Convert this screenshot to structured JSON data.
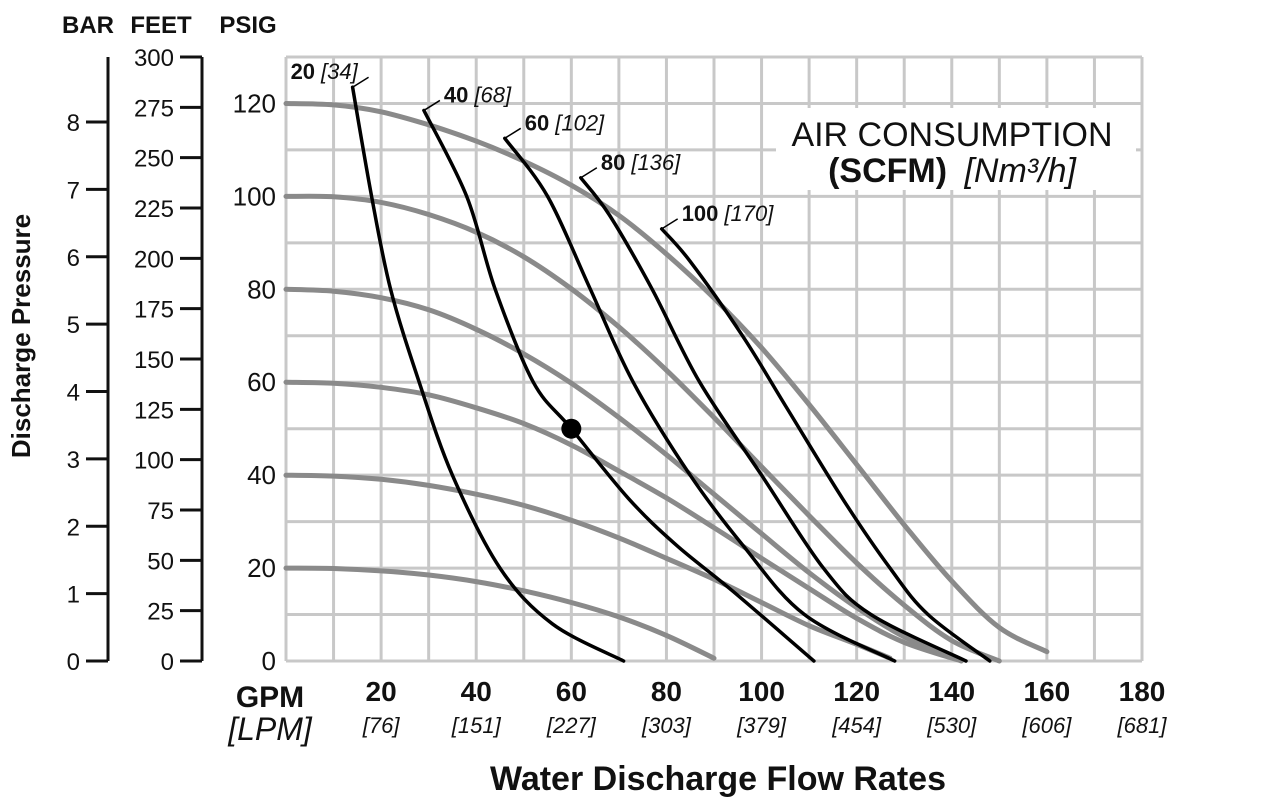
{
  "chart_data": {
    "type": "line",
    "title": "",
    "legend_box": {
      "line1": "AIR CONSUMPTION",
      "line2_bold": "(SCFM)",
      "line2_italic": "[Nm³/h]"
    },
    "xlabel": "Water Discharge Flow Rates",
    "x_unit_primary": "GPM",
    "x_unit_secondary": "[LPM]",
    "xlim": [
      0,
      180
    ],
    "x_ticks": [
      {
        "v": 20,
        "label": "20",
        "sub": "[76]"
      },
      {
        "v": 40,
        "label": "40",
        "sub": "[151]"
      },
      {
        "v": 60,
        "label": "60",
        "sub": "[227]"
      },
      {
        "v": 80,
        "label": "80",
        "sub": "[303]"
      },
      {
        "v": 100,
        "label": "100",
        "sub": "[379]"
      },
      {
        "v": 120,
        "label": "120",
        "sub": "[454]"
      },
      {
        "v": 140,
        "label": "140",
        "sub": "[530]"
      },
      {
        "v": 160,
        "label": "160",
        "sub": "[606]"
      },
      {
        "v": 180,
        "label": "180",
        "sub": "[681]"
      }
    ],
    "ylabel": "Discharge Pressure",
    "ylim": [
      0,
      130
    ],
    "y_axes": [
      {
        "name": "BAR",
        "ticks": [
          {
            "v": 0,
            "label": "0"
          },
          {
            "v": 14.5,
            "label": "1"
          },
          {
            "v": 29,
            "label": "2"
          },
          {
            "v": 43.5,
            "label": "3"
          },
          {
            "v": 58,
            "label": "4"
          },
          {
            "v": 72.5,
            "label": "5"
          },
          {
            "v": 87,
            "label": "6"
          },
          {
            "v": 101.5,
            "label": "7"
          },
          {
            "v": 116,
            "label": "8"
          }
        ]
      },
      {
        "name": "FEET",
        "ticks": [
          {
            "v": 0,
            "label": "0"
          },
          {
            "v": 10.83,
            "label": "25"
          },
          {
            "v": 21.67,
            "label": "50"
          },
          {
            "v": 32.5,
            "label": "75"
          },
          {
            "v": 43.33,
            "label": "100"
          },
          {
            "v": 54.17,
            "label": "125"
          },
          {
            "v": 65,
            "label": "150"
          },
          {
            "v": 75.83,
            "label": "175"
          },
          {
            "v": 86.67,
            "label": "200"
          },
          {
            "v": 97.5,
            "label": "225"
          },
          {
            "v": 108.33,
            "label": "250"
          },
          {
            "v": 119.17,
            "label": "275"
          },
          {
            "v": 130,
            "label": "300"
          }
        ]
      },
      {
        "name": "PSIG",
        "ticks": [
          {
            "v": 0,
            "label": "0"
          },
          {
            "v": 20,
            "label": "20"
          },
          {
            "v": 40,
            "label": "40"
          },
          {
            "v": 60,
            "label": "60"
          },
          {
            "v": 80,
            "label": "80"
          },
          {
            "v": 100,
            "label": "100"
          },
          {
            "v": 120,
            "label": "120"
          }
        ]
      }
    ],
    "grid": true,
    "pressure_series": [
      {
        "points": [
          [
            0,
            120
          ],
          [
            10,
            119.7
          ],
          [
            20,
            118.2
          ],
          [
            30,
            115.4
          ],
          [
            40,
            111.9
          ],
          [
            50,
            107.6
          ],
          [
            60,
            102.4
          ],
          [
            70,
            95.9
          ],
          [
            80,
            87.6
          ],
          [
            90,
            78.1
          ],
          [
            100,
            67.4
          ],
          [
            110,
            55.2
          ],
          [
            120,
            42.3
          ],
          [
            130,
            29.3
          ],
          [
            140,
            17.2
          ],
          [
            150,
            7.2
          ],
          [
            160,
            2
          ]
        ]
      },
      {
        "points": [
          [
            0,
            100
          ],
          [
            10,
            99.9
          ],
          [
            20,
            98.7
          ],
          [
            30,
            96.1
          ],
          [
            40,
            92.3
          ],
          [
            50,
            87
          ],
          [
            60,
            80.1
          ],
          [
            70,
            71.9
          ],
          [
            80,
            62.6
          ],
          [
            90,
            52.4
          ],
          [
            100,
            41.8
          ],
          [
            110,
            31.3
          ],
          [
            120,
            21.1
          ],
          [
            130,
            12
          ],
          [
            140,
            4.4
          ],
          [
            150,
            0
          ]
        ]
      },
      {
        "points": [
          [
            0,
            80
          ],
          [
            10,
            79.6
          ],
          [
            20,
            78.2
          ],
          [
            30,
            75.6
          ],
          [
            40,
            71.4
          ],
          [
            50,
            66.1
          ],
          [
            60,
            59.8
          ],
          [
            70,
            52.4
          ],
          [
            80,
            44.4
          ],
          [
            90,
            35.9
          ],
          [
            100,
            27.4
          ],
          [
            110,
            19
          ],
          [
            120,
            11.5
          ],
          [
            130,
            5.2
          ],
          [
            140,
            1
          ]
        ]
      },
      {
        "points": [
          [
            0,
            60
          ],
          [
            10,
            59.8
          ],
          [
            20,
            58.9
          ],
          [
            30,
            57.3
          ],
          [
            40,
            54.5
          ],
          [
            50,
            51.1
          ],
          [
            60,
            46.5
          ],
          [
            70,
            40.9
          ],
          [
            80,
            35.1
          ],
          [
            90,
            28.7
          ],
          [
            100,
            22.1
          ],
          [
            110,
            15.6
          ],
          [
            120,
            9.2
          ],
          [
            130,
            4
          ],
          [
            142,
            0
          ]
        ]
      },
      {
        "points": [
          [
            0,
            40
          ],
          [
            10,
            39.8
          ],
          [
            20,
            39.1
          ],
          [
            30,
            37.8
          ],
          [
            40,
            35.9
          ],
          [
            50,
            33.5
          ],
          [
            60,
            30.3
          ],
          [
            70,
            26.5
          ],
          [
            80,
            22.1
          ],
          [
            90,
            17.6
          ],
          [
            100,
            12.6
          ],
          [
            110,
            7.6
          ],
          [
            120,
            3.6
          ],
          [
            127,
            0.6
          ]
        ]
      },
      {
        "points": [
          [
            0,
            20
          ],
          [
            10,
            19.9
          ],
          [
            20,
            19.4
          ],
          [
            30,
            18.5
          ],
          [
            40,
            17.1
          ],
          [
            50,
            15.1
          ],
          [
            60,
            12.6
          ],
          [
            70,
            9.5
          ],
          [
            80,
            5.5
          ],
          [
            90,
            0.6
          ]
        ]
      }
    ],
    "air_series": [
      {
        "label": "20",
        "label_sub": "[34]",
        "points": [
          [
            14,
            123.5
          ],
          [
            18,
            100
          ],
          [
            22,
            80
          ],
          [
            28,
            60
          ],
          [
            35,
            40
          ],
          [
            45,
            20
          ],
          [
            56,
            8
          ],
          [
            71,
            0
          ]
        ]
      },
      {
        "label": "40",
        "label_sub": "[68]",
        "points": [
          [
            29,
            118.5
          ],
          [
            38,
            100
          ],
          [
            44,
            80
          ],
          [
            52,
            60
          ],
          [
            60,
            50
          ],
          [
            72,
            35
          ],
          [
            82,
            25
          ],
          [
            94,
            15
          ],
          [
            111,
            0
          ]
        ]
      },
      {
        "label": "60",
        "label_sub": "[102]",
        "points": [
          [
            46,
            112.5
          ],
          [
            55,
            100
          ],
          [
            64,
            80
          ],
          [
            73,
            60
          ],
          [
            85,
            40
          ],
          [
            96,
            25
          ],
          [
            109,
            10
          ],
          [
            128,
            0
          ]
        ]
      },
      {
        "label": "80",
        "label_sub": "[136]",
        "points": [
          [
            62,
            104
          ],
          [
            68,
            96
          ],
          [
            77,
            80
          ],
          [
            87,
            60
          ],
          [
            100,
            40
          ],
          [
            113,
            20
          ],
          [
            123,
            10
          ],
          [
            143,
            0
          ]
        ]
      },
      {
        "label": "100",
        "label_sub": "[170]",
        "points": [
          [
            79,
            93
          ],
          [
            85,
            86
          ],
          [
            96,
            70
          ],
          [
            105,
            55
          ],
          [
            117,
            35
          ],
          [
            127,
            20
          ],
          [
            135,
            10
          ],
          [
            148,
            0
          ]
        ]
      }
    ],
    "marker": {
      "x": 60,
      "y": 50
    }
  }
}
